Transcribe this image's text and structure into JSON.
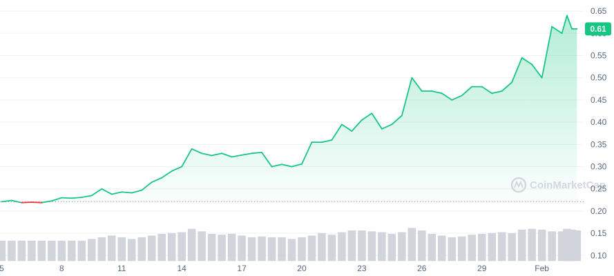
{
  "chart_data": {
    "type": "area",
    "title": "",
    "xlabel": "",
    "ylabel": "",
    "x_ticks": [
      "5",
      "8",
      "11",
      "14",
      "17",
      "20",
      "23",
      "26",
      "29",
      "Feb"
    ],
    "y_ticks": [
      "0.65",
      "0.60",
      "0.55",
      "0.50",
      "0.45",
      "0.40",
      "0.35",
      "0.30",
      "0.25",
      "0.20",
      "0.15",
      "0.10"
    ],
    "ylim": [
      0.085,
      0.675
    ],
    "xlim": [
      "2024-01-04T22:00",
      "2024-02-03T02:00"
    ],
    "reference_price": 0.221,
    "current_price": 0.61,
    "current_price_label": "0.61",
    "up_color": "#16c784",
    "down_color": "#ea3943",
    "volume_color": "#d1d5db",
    "watermark": "CoinMarketCap",
    "x": [
      "2024-01-05",
      "2024-01-05T12:00",
      "2024-01-06",
      "2024-01-06T12:00",
      "2024-01-07",
      "2024-01-07T12:00",
      "2024-01-08",
      "2024-01-08T12:00",
      "2024-01-09",
      "2024-01-09T12:00",
      "2024-01-10",
      "2024-01-10T12:00",
      "2024-01-11",
      "2024-01-11T12:00",
      "2024-01-12",
      "2024-01-12T12:00",
      "2024-01-13",
      "2024-01-13T12:00",
      "2024-01-14",
      "2024-01-14T12:00",
      "2024-01-15",
      "2024-01-15T12:00",
      "2024-01-16",
      "2024-01-16T12:00",
      "2024-01-17",
      "2024-01-17T12:00",
      "2024-01-18",
      "2024-01-18T12:00",
      "2024-01-19",
      "2024-01-19T12:00",
      "2024-01-20",
      "2024-01-20T12:00",
      "2024-01-21",
      "2024-01-21T12:00",
      "2024-01-22",
      "2024-01-22T12:00",
      "2024-01-23",
      "2024-01-23T12:00",
      "2024-01-24",
      "2024-01-24T12:00",
      "2024-01-25",
      "2024-01-25T12:00",
      "2024-01-26",
      "2024-01-26T12:00",
      "2024-01-27",
      "2024-01-27T12:00",
      "2024-01-28",
      "2024-01-28T12:00",
      "2024-01-29",
      "2024-01-29T12:00",
      "2024-01-30",
      "2024-01-30T12:00",
      "2024-01-31",
      "2024-01-31T12:00",
      "2024-02-01",
      "2024-02-01T12:00",
      "2024-02-02",
      "2024-02-02T06:00",
      "2024-02-02T12:00",
      "2024-02-02T18:00"
    ],
    "price": [
      0.221,
      0.224,
      0.219,
      0.22,
      0.219,
      0.223,
      0.23,
      0.229,
      0.231,
      0.235,
      0.25,
      0.238,
      0.243,
      0.241,
      0.247,
      0.265,
      0.275,
      0.29,
      0.3,
      0.34,
      0.33,
      0.325,
      0.33,
      0.322,
      0.326,
      0.33,
      0.332,
      0.3,
      0.305,
      0.3,
      0.306,
      0.355,
      0.355,
      0.36,
      0.395,
      0.38,
      0.405,
      0.42,
      0.385,
      0.395,
      0.415,
      0.5,
      0.47,
      0.47,
      0.465,
      0.45,
      0.46,
      0.48,
      0.48,
      0.465,
      0.47,
      0.49,
      0.545,
      0.53,
      0.5,
      0.615,
      0.6,
      0.64,
      0.61,
      0.61
    ],
    "volume": [
      0.12,
      0.12,
      0.12,
      0.12,
      0.12,
      0.12,
      0.12,
      0.12,
      0.12,
      0.13,
      0.14,
      0.15,
      0.14,
      0.13,
      0.14,
      0.15,
      0.16,
      0.165,
      0.17,
      0.19,
      0.175,
      0.16,
      0.155,
      0.16,
      0.15,
      0.14,
      0.145,
      0.14,
      0.14,
      0.13,
      0.14,
      0.15,
      0.165,
      0.155,
      0.17,
      0.18,
      0.18,
      0.175,
      0.17,
      0.16,
      0.17,
      0.195,
      0.18,
      0.16,
      0.15,
      0.14,
      0.145,
      0.155,
      0.16,
      0.165,
      0.17,
      0.165,
      0.185,
      0.19,
      0.185,
      0.175,
      0.175,
      0.19,
      0.185,
      0.18
    ]
  }
}
